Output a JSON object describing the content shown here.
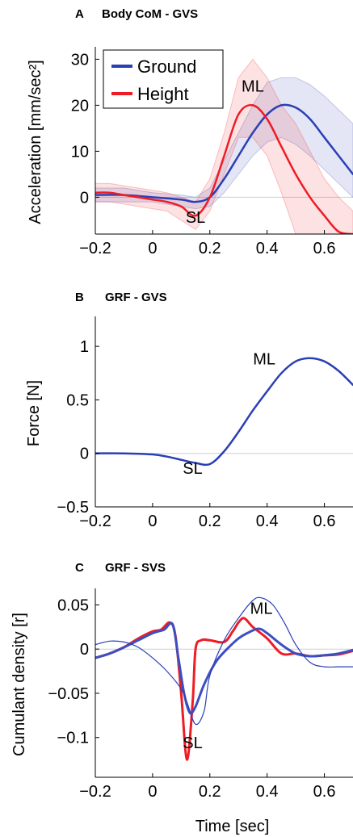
{
  "x_axis_label": "Time [sec]",
  "colors": {
    "ground": "#2b3fb5",
    "height": "#ee1c25",
    "zero_line": "#cfcfcf"
  },
  "chart_data": [
    {
      "id": "A",
      "type": "line",
      "panel_letter": "A",
      "title": "Body CoM - GVS",
      "ylabel": "Acceleration [mm/sec²]",
      "xlim": [
        -0.2,
        0.7
      ],
      "ylim": [
        -8,
        32
      ],
      "xticks": [
        -0.2,
        0,
        0.2,
        0.4,
        0.6
      ],
      "xtick_labels": [
        "−0.2",
        "0",
        "0.2",
        "0.4",
        "0.6"
      ],
      "yticks": [
        0,
        10,
        20,
        30
      ],
      "ytick_labels": [
        "0",
        "10",
        "20",
        "30"
      ],
      "legend": {
        "position": "top-left",
        "entries": [
          "Ground",
          "Height"
        ]
      },
      "annotations": [
        {
          "text": "SL",
          "x": 0.15,
          "y": -5.5
        },
        {
          "text": "ML",
          "x": 0.35,
          "y": 23
        }
      ],
      "series": [
        {
          "name": "Ground",
          "color": "#2b3fb5",
          "x": [
            -0.2,
            -0.1,
            0,
            0.1,
            0.15,
            0.2,
            0.25,
            0.3,
            0.35,
            0.4,
            0.45,
            0.5,
            0.55,
            0.6,
            0.65,
            0.7
          ],
          "y": [
            0.5,
            0.5,
            0,
            -0.5,
            -1,
            0,
            4,
            9,
            14,
            18,
            20,
            19.5,
            17,
            13,
            9,
            5
          ],
          "lower": [
            -1,
            -1,
            -1,
            -2,
            -2.5,
            -2,
            1,
            5,
            9,
            12,
            13,
            11.5,
            9,
            6,
            3,
            0
          ],
          "upper": [
            2,
            2,
            1,
            0.5,
            0,
            2,
            8,
            14,
            20,
            25,
            26,
            26,
            24.5,
            22,
            19,
            16
          ]
        },
        {
          "name": "Height",
          "color": "#ee1c25",
          "x": [
            -0.2,
            -0.15,
            -0.1,
            -0.05,
            0,
            0.05,
            0.1,
            0.15,
            0.2,
            0.25,
            0.3,
            0.35,
            0.4,
            0.45,
            0.5,
            0.55,
            0.6,
            0.65,
            0.7
          ],
          "y": [
            1,
            1,
            0.5,
            0,
            -0.5,
            -1,
            -2,
            -4,
            0,
            9,
            18,
            20,
            17,
            11,
            5,
            0,
            -4,
            -7.5,
            -8
          ],
          "lower": [
            -1,
            -1,
            -1.5,
            -2,
            -2.5,
            -3,
            -5,
            -7,
            -3,
            5,
            13,
            13,
            9,
            1,
            -8,
            -8,
            -8,
            -8,
            -8
          ],
          "upper": [
            3,
            3,
            2.5,
            2,
            1.5,
            1,
            0,
            -1,
            4,
            14,
            26,
            30,
            26,
            20,
            16,
            10,
            4,
            0,
            -3
          ]
        }
      ]
    },
    {
      "id": "B",
      "type": "line",
      "panel_letter": "B",
      "title": "GRF - GVS",
      "ylabel": "Force [N]",
      "xlim": [
        -0.2,
        0.7
      ],
      "ylim": [
        -0.5,
        1.25
      ],
      "xticks": [
        -0.2,
        0,
        0.2,
        0.4,
        0.6
      ],
      "xtick_labels": [
        "−0.2",
        "0",
        "0.2",
        "0.4",
        "0.6"
      ],
      "yticks": [
        -0.5,
        0,
        0.5,
        1
      ],
      "ytick_labels": [
        "−0.5",
        "0",
        "0.5",
        "1"
      ],
      "annotations": [
        {
          "text": "SL",
          "x": 0.14,
          "y": -0.19
        },
        {
          "text": "ML",
          "x": 0.39,
          "y": 0.83
        }
      ],
      "series": [
        {
          "color": "#2b3fb5",
          "x": [
            -0.2,
            -0.1,
            0,
            0.05,
            0.1,
            0.15,
            0.2,
            0.25,
            0.3,
            0.35,
            0.4,
            0.45,
            0.5,
            0.55,
            0.6,
            0.65,
            0.7
          ],
          "y": [
            0,
            0,
            -0.01,
            -0.03,
            -0.06,
            -0.09,
            -0.1,
            0.02,
            0.2,
            0.4,
            0.58,
            0.75,
            0.86,
            0.89,
            0.86,
            0.77,
            0.64
          ]
        }
      ]
    },
    {
      "id": "C",
      "type": "line",
      "panel_letter": "C",
      "title": "GRF - SVS",
      "ylabel": "Cumulant density [r]",
      "xlabel": "Time [sec]",
      "xlim": [
        -0.2,
        0.7
      ],
      "ylim": [
        -0.145,
        0.065
      ],
      "xticks": [
        -0.2,
        0,
        0.2,
        0.4,
        0.6
      ],
      "xtick_labels": [
        "−0.2",
        "0",
        "0.2",
        "0.4",
        "0.6"
      ],
      "yticks": [
        -0.1,
        -0.05,
        0,
        0.05
      ],
      "ytick_labels": [
        "−0.1",
        "−0.05",
        "0",
        "0.05"
      ],
      "annotations": [
        {
          "text": "SL",
          "x": 0.14,
          "y": -0.112
        },
        {
          "text": "ML",
          "x": 0.38,
          "y": 0.04
        }
      ],
      "series": [
        {
          "color": "#ee1c25",
          "width": 3,
          "x": [
            -0.2,
            -0.15,
            -0.1,
            -0.05,
            0,
            0.03,
            0.06,
            0.08,
            0.1,
            0.12,
            0.14,
            0.15,
            0.17,
            0.2,
            0.25,
            0.28,
            0.3,
            0.32,
            0.35,
            0.4,
            0.45,
            0.5,
            0.55,
            0.6,
            0.65,
            0.7
          ],
          "y": [
            -0.01,
            -0.005,
            0.002,
            0.012,
            0.02,
            0.022,
            0.03,
            0.015,
            -0.05,
            -0.125,
            -0.06,
            0,
            0.01,
            0.01,
            0.008,
            0.02,
            0.03,
            0.035,
            0.025,
            0.012,
            -0.005,
            -0.005,
            -0.008,
            -0.007,
            -0.006,
            -0.002
          ]
        },
        {
          "color": "#3d4fc0",
          "width": 3,
          "x": [
            -0.2,
            -0.15,
            -0.1,
            -0.05,
            0,
            0.04,
            0.07,
            0.09,
            0.11,
            0.13,
            0.15,
            0.18,
            0.22,
            0.26,
            0.3,
            0.33,
            0.37,
            0.4,
            0.45,
            0.5,
            0.55,
            0.6,
            0.65,
            0.7
          ],
          "y": [
            -0.01,
            -0.005,
            0.002,
            0.01,
            0.018,
            0.022,
            0.028,
            -0.01,
            -0.05,
            -0.072,
            -0.065,
            -0.04,
            -0.015,
            0,
            0.012,
            0.018,
            0.023,
            0.018,
            0.005,
            -0.005,
            -0.008,
            -0.007,
            -0.005,
            -0.001
          ]
        },
        {
          "color": "#2b3fb5",
          "width": 1.2,
          "x": [
            -0.2,
            -0.15,
            -0.1,
            -0.05,
            0,
            0.05,
            0.1,
            0.12,
            0.15,
            0.18,
            0.2,
            0.25,
            0.3,
            0.35,
            0.38,
            0.42,
            0.46,
            0.5,
            0.55,
            0.6,
            0.65,
            0.7
          ],
          "y": [
            0.005,
            0.009,
            0.008,
            0.002,
            -0.01,
            -0.025,
            -0.045,
            -0.06,
            -0.085,
            -0.07,
            -0.03,
            0.01,
            0.035,
            0.055,
            0.058,
            0.05,
            0.03,
            0.005,
            -0.015,
            -0.02,
            -0.02,
            -0.02
          ]
        }
      ]
    }
  ]
}
